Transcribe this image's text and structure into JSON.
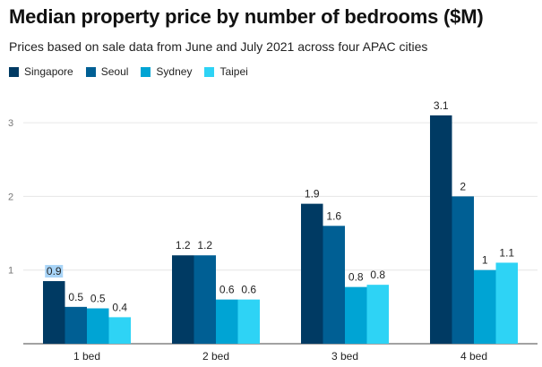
{
  "chart_data": {
    "type": "bar",
    "title": "Median property price by number of bedrooms ($M)",
    "subtitle": "Prices based on sale data from June and July 2021 across four APAC cities",
    "categories": [
      "1 bed",
      "2 bed",
      "3 bed",
      "4 bed"
    ],
    "series": [
      {
        "name": "Singapore",
        "color": "#003a63",
        "values": [
          0.85,
          1.2,
          1.9,
          3.1
        ],
        "labels": [
          "0.9",
          "1.2",
          "1.9",
          "3.1"
        ]
      },
      {
        "name": "Seoul",
        "color": "#005f94",
        "values": [
          0.5,
          1.2,
          1.6,
          2.0
        ],
        "labels": [
          "0.5",
          "1.2",
          "1.6",
          "2"
        ]
      },
      {
        "name": "Sydney",
        "color": "#00a4d4",
        "values": [
          0.48,
          0.6,
          0.77,
          1.0
        ],
        "labels": [
          "0.5",
          "0.6",
          "0.8",
          "1"
        ]
      },
      {
        "name": "Taipei",
        "color": "#2ed3f5",
        "values": [
          0.36,
          0.6,
          0.8,
          1.1
        ],
        "labels": [
          "0.4",
          "0.6",
          "0.8",
          "1.1"
        ]
      }
    ],
    "y_ticks": [
      "1",
      "2",
      "3"
    ],
    "y_tick_values": [
      1,
      2,
      3
    ],
    "ylim": [
      0,
      3.0
    ],
    "grid": true,
    "legend": "top-left",
    "highlight_label": "#a8d4f7"
  }
}
